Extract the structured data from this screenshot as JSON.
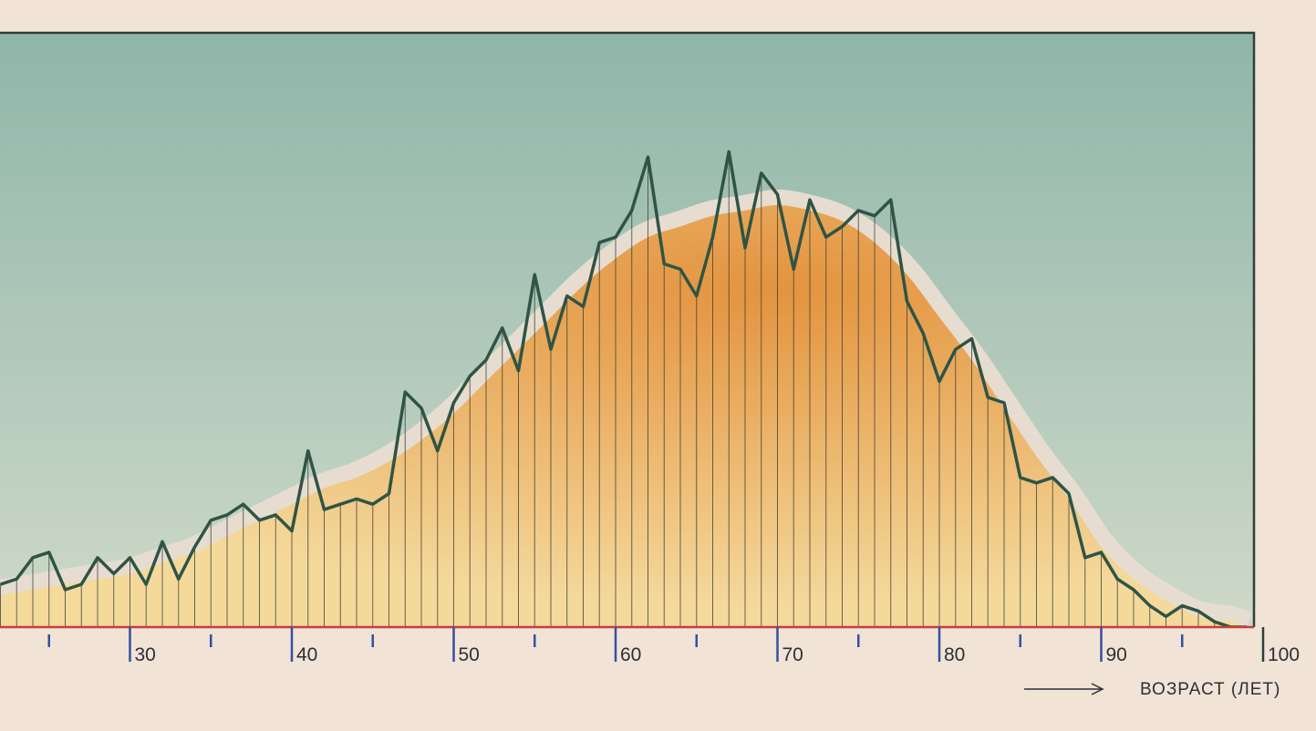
{
  "chart_data": {
    "type": "area",
    "xlabel": "ВОЗРАСТ (ЛЕТ)",
    "xlim": [
      22,
      99
    ],
    "ylim": [
      0,
      100
    ],
    "x_ticks": [
      30,
      40,
      50,
      60,
      70,
      80,
      90,
      100
    ],
    "grid": false,
    "series": [
      {
        "style": "line",
        "x": [
          22,
          23,
          24,
          25,
          26,
          27,
          28,
          29,
          30,
          31,
          32,
          33,
          34,
          35,
          36,
          37,
          38,
          39,
          40,
          41,
          42,
          43,
          44,
          45,
          46,
          47,
          48,
          49,
          50,
          51,
          52,
          53,
          54,
          55,
          56,
          57,
          58,
          59,
          60,
          61,
          62,
          63,
          64,
          65,
          66,
          67,
          68,
          69,
          70,
          71,
          72,
          73,
          74,
          75,
          76,
          77,
          78,
          79,
          80,
          81,
          82,
          83,
          84,
          85,
          86,
          87,
          88,
          89,
          90,
          91,
          92,
          93,
          94,
          95,
          96,
          97,
          98,
          99
        ],
        "values": [
          8,
          9,
          13,
          14,
          7,
          8,
          13,
          10,
          13,
          8,
          16,
          9,
          15,
          20,
          21,
          23,
          20,
          21,
          18,
          33,
          22,
          23,
          24,
          23,
          25,
          44,
          41,
          33,
          42,
          47,
          50,
          56,
          48,
          66,
          52,
          62,
          60,
          72,
          73,
          78,
          88,
          68,
          67,
          62,
          73,
          89,
          71,
          85,
          81,
          67,
          80,
          73,
          75,
          78,
          77,
          80,
          61,
          55,
          46,
          52,
          54,
          43,
          42,
          28,
          27,
          28,
          25,
          13,
          14,
          9,
          7,
          4,
          2,
          4,
          3,
          1,
          0,
          0
        ]
      },
      {
        "style": "smooth-fill",
        "x": [
          22,
          24,
          26,
          28,
          30,
          32,
          34,
          36,
          38,
          40,
          42,
          44,
          46,
          48,
          50,
          52,
          54,
          56,
          58,
          60,
          62,
          64,
          66,
          68,
          70,
          72,
          74,
          76,
          78,
          80,
          82,
          84,
          86,
          88,
          90,
          92,
          94,
          96,
          98,
          99
        ],
        "values": [
          6,
          7,
          8,
          9,
          10,
          12,
          14,
          17,
          20,
          23,
          26,
          28,
          31,
          35,
          40,
          46,
          52,
          58,
          64,
          69,
          73,
          75,
          77,
          78,
          79,
          78,
          76,
          72,
          66,
          58,
          50,
          41,
          32,
          24,
          15,
          9,
          5,
          2,
          1,
          0
        ]
      }
    ]
  },
  "colors": {
    "background_top": "#8fb6aa",
    "background_bottom": "#cfd9c8",
    "paper": "#f1e3d6",
    "halo": "#e6ddd0",
    "fill_peak": "#e3933e",
    "fill_edge": "#f4d99b",
    "line": "#2f5446",
    "frame": "#2f4038",
    "axis": "#c04040",
    "minor_tick": "#3550a0"
  }
}
